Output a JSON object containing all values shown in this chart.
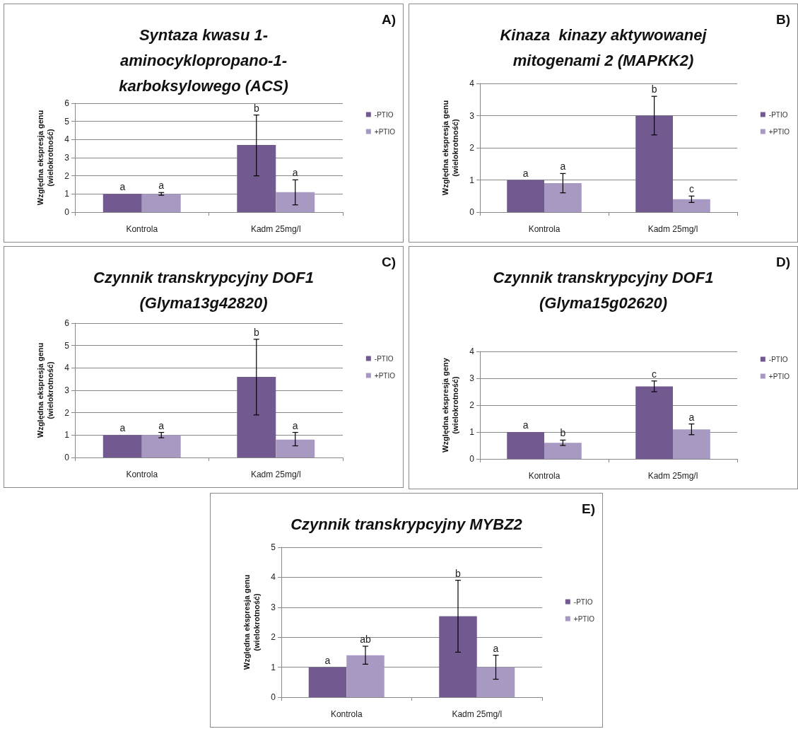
{
  "chart_data": [
    {
      "type": "bar",
      "title": "Syntaza kwasu 1-\naminocyklopropano-1-\nkarboksylowego (ACS)",
      "ylabel": "Względna ekspresja genu\n(wielokrotność)",
      "categories": [
        "Kontrola",
        "Kadm 25mg/l"
      ],
      "ylim": [
        0,
        6
      ],
      "yticks": [
        0,
        1,
        2,
        3,
        4,
        5,
        6
      ],
      "grid": "y",
      "legend": "right",
      "annotations": [
        "A)",
        "a",
        "a",
        "b",
        "a"
      ],
      "series": [
        {
          "name": "-PTIO",
          "color": "#725a91",
          "values": [
            1,
            3.7
          ],
          "errors": [
            null,
            [
              2.0,
              5.35
            ]
          ]
        },
        {
          "name": "+PTIO",
          "color": "#a899c2",
          "values": [
            1,
            1.1
          ],
          "errors": [
            [
              0.93,
              1.08
            ],
            [
              0.4,
              1.78
            ]
          ]
        }
      ]
    },
    {
      "type": "bar",
      "title": "Kinaza  kinazy aktywowanej\nmitogenami 2 (MAPKK2)",
      "ylabel": "Względna ekspresja genu\n(wielokrotność)",
      "categories": [
        "Kontrola",
        "Kadm 25mg/l"
      ],
      "ylim": [
        0,
        4
      ],
      "yticks": [
        0,
        1,
        2,
        3,
        4
      ],
      "grid": "y",
      "legend": "right",
      "annotations": [
        "B)",
        "a",
        "a",
        "b",
        "c"
      ],
      "series": [
        {
          "name": "-PTIO",
          "color": "#725a91",
          "values": [
            1,
            3
          ],
          "errors": [
            null,
            [
              2.4,
              3.6
            ]
          ]
        },
        {
          "name": "+PTIO",
          "color": "#a899c2",
          "values": [
            0.9,
            0.4
          ],
          "errors": [
            [
              0.6,
              1.2
            ],
            [
              0.3,
              0.5
            ]
          ]
        }
      ]
    },
    {
      "type": "bar",
      "title": "Czynnik transkrypcyjny DOF1\n(Glyma13g42820)",
      "ylabel": "Względna ekspresja genu\n(wielokrotność)",
      "categories": [
        "Kontrola",
        "Kadm 25mg/l"
      ],
      "ylim": [
        0,
        6
      ],
      "yticks": [
        0,
        1,
        2,
        3,
        4,
        5,
        6
      ],
      "grid": "y",
      "legend": "right",
      "annotations": [
        "C)",
        "a",
        "a",
        "b",
        "a"
      ],
      "series": [
        {
          "name": "-PTIO",
          "color": "#725a91",
          "values": [
            1,
            3.6
          ],
          "errors": [
            null,
            [
              1.9,
              5.28
            ]
          ]
        },
        {
          "name": "+PTIO",
          "color": "#a899c2",
          "values": [
            1,
            0.8
          ],
          "errors": [
            [
              0.88,
              1.12
            ],
            [
              0.52,
              1.12
            ]
          ]
        }
      ]
    },
    {
      "type": "bar",
      "title": "Czynnik transkrypcyjny DOF1\n(Glyma15g02620)",
      "ylabel": "Względna ekspresja geny\n(wielokrotność)",
      "categories": [
        "Kontrola",
        "Kadm 25mg/l"
      ],
      "ylim": [
        0,
        4
      ],
      "yticks": [
        0,
        1,
        2,
        3,
        4
      ],
      "grid": "y",
      "legend": "right",
      "annotations": [
        "D)",
        "a",
        "b",
        "c",
        "a"
      ],
      "series": [
        {
          "name": "-PTIO",
          "color": "#725a91",
          "values": [
            1,
            2.7
          ],
          "errors": [
            null,
            [
              2.5,
              2.9
            ]
          ]
        },
        {
          "name": "+PTIO",
          "color": "#a899c2",
          "values": [
            0.6,
            1.1
          ],
          "errors": [
            [
              0.5,
              0.7
            ],
            [
              0.9,
              1.3
            ]
          ]
        }
      ]
    },
    {
      "type": "bar",
      "title": "Czynnik transkrypcyjny MYBZ2",
      "ylabel": "Względna ekspresja genu\n(wielokrotność)",
      "categories": [
        "Kontrola",
        "Kadm 25mg/l"
      ],
      "ylim": [
        0,
        5
      ],
      "yticks": [
        0,
        1,
        2,
        3,
        4,
        5
      ],
      "grid": "y",
      "legend": "right",
      "annotations": [
        "E)",
        "a",
        "ab",
        "b",
        "a"
      ],
      "series": [
        {
          "name": "-PTIO",
          "color": "#725a91",
          "values": [
            1,
            2.7
          ],
          "errors": [
            null,
            [
              1.5,
              3.9
            ]
          ]
        },
        {
          "name": "+PTIO",
          "color": "#a899c2",
          "values": [
            1.4,
            1.0
          ],
          "errors": [
            [
              1.1,
              1.7
            ],
            [
              0.6,
              1.4
            ]
          ]
        }
      ]
    }
  ]
}
